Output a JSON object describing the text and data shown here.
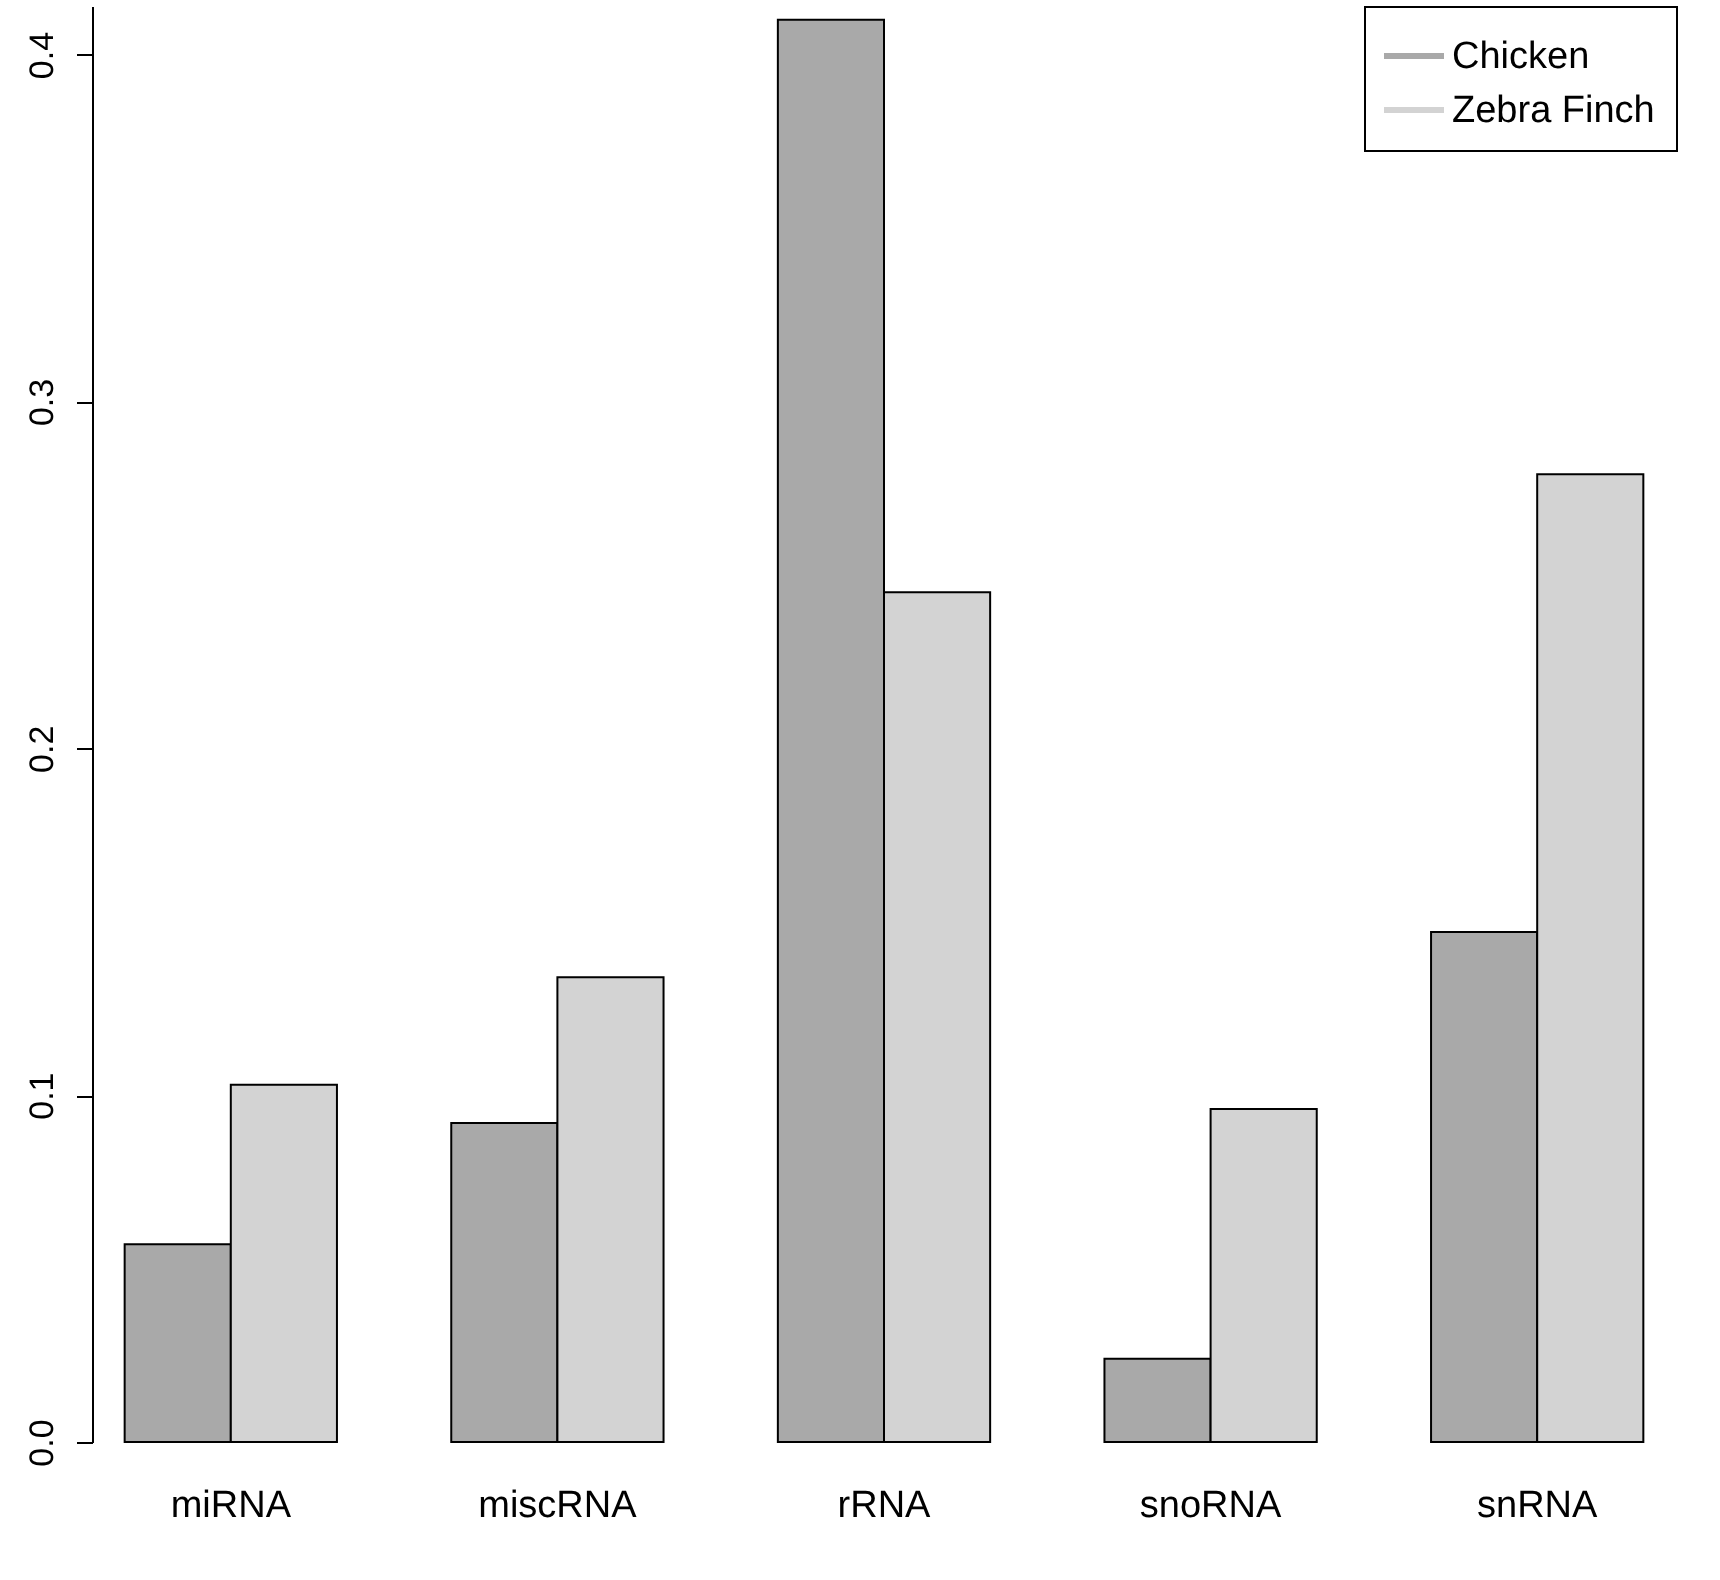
{
  "chart_data": {
    "type": "bar",
    "categories": [
      "miRNA",
      "miscRNA",
      "rRNA",
      "snoRNA",
      "snRNA"
    ],
    "series": [
      {
        "name": "Chicken",
        "color": "#a9a9a9",
        "values": [
          0.057,
          0.092,
          0.41,
          0.024,
          0.147
        ]
      },
      {
        "name": "Zebra Finch",
        "color": "#d3d3d3",
        "values": [
          0.103,
          0.134,
          0.245,
          0.096,
          0.279
        ]
      }
    ],
    "ylim": [
      0,
      0.414
    ],
    "yticks": [
      {
        "value": 0,
        "label": "0.0"
      },
      {
        "value": 0.1,
        "label": "0.1"
      },
      {
        "value": 0.2,
        "label": "0.2"
      },
      {
        "value": 0.3,
        "label": "0.3"
      },
      {
        "value": 0.4,
        "label": "0.4"
      }
    ],
    "grid": false,
    "legend": "top right"
  }
}
